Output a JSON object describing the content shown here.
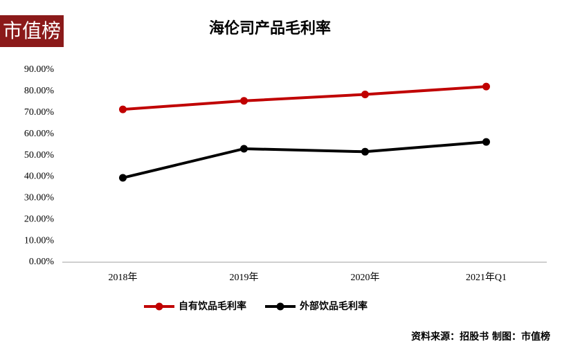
{
  "chart_data": {
    "type": "line",
    "title": "海伦司产品毛利率",
    "logo": "市值榜",
    "source": "资料来源：招股书   制图：市值榜",
    "categories": [
      "2018年",
      "2019年",
      "2020年",
      "2021年Q1"
    ],
    "series": [
      {
        "name": "自有饮品毛利率",
        "color": "#c00000",
        "values": [
          71.5,
          75.5,
          78.5,
          82.2
        ]
      },
      {
        "name": "外部饮品毛利率",
        "color": "#000000",
        "values": [
          39.5,
          53.1,
          51.7,
          56.3
        ]
      }
    ],
    "ylim": [
      0,
      90
    ],
    "yticks": [
      {
        "value": 0,
        "label": "0.00%"
      },
      {
        "value": 10,
        "label": "10.00%"
      },
      {
        "value": 20,
        "label": "20.00%"
      },
      {
        "value": 30,
        "label": "30.00%"
      },
      {
        "value": 40,
        "label": "40.00%"
      },
      {
        "value": 50,
        "label": "50.00%"
      },
      {
        "value": 60,
        "label": "60.00%"
      },
      {
        "value": 70,
        "label": "70.00%"
      },
      {
        "value": 80,
        "label": "80.00%"
      },
      {
        "value": 90,
        "label": "90.00%"
      }
    ],
    "grid": false,
    "legend": "bottom"
  }
}
